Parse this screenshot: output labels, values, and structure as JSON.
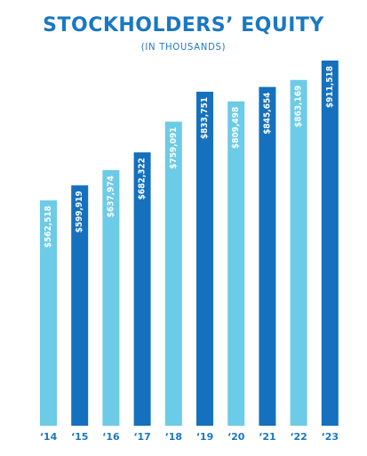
{
  "title": "STOCKHOLDERS’ EQUITY",
  "subtitle": "(IN THOUSANDS)",
  "colors": {
    "light": "#6ccbe6",
    "dark": "#1570bd",
    "text": "#1a78c2",
    "label": "#ffffff"
  },
  "chart_data": {
    "type": "bar",
    "title": "STOCKHOLDERS’ EQUITY",
    "subtitle": "(IN THOUSANDS)",
    "xlabel": "",
    "ylabel": "",
    "grid": false,
    "legend": "none",
    "categories": [
      "‘14",
      "‘15",
      "‘16",
      "‘17",
      "‘18",
      "‘19",
      "‘20",
      "‘21",
      "‘22",
      "‘23"
    ],
    "values": [
      562518,
      599919,
      637974,
      682322,
      759091,
      833751,
      809498,
      845654,
      863169,
      911518
    ],
    "labels": [
      "$562,518",
      "$599,919",
      "$637,974",
      "$682,322",
      "$759,091",
      "$833,751",
      "$809,498",
      "$845,654",
      "$863,169",
      "$911,518"
    ],
    "bar_colors": [
      "light",
      "dark",
      "light",
      "dark",
      "light",
      "dark",
      "light",
      "dark",
      "light",
      "dark"
    ]
  }
}
